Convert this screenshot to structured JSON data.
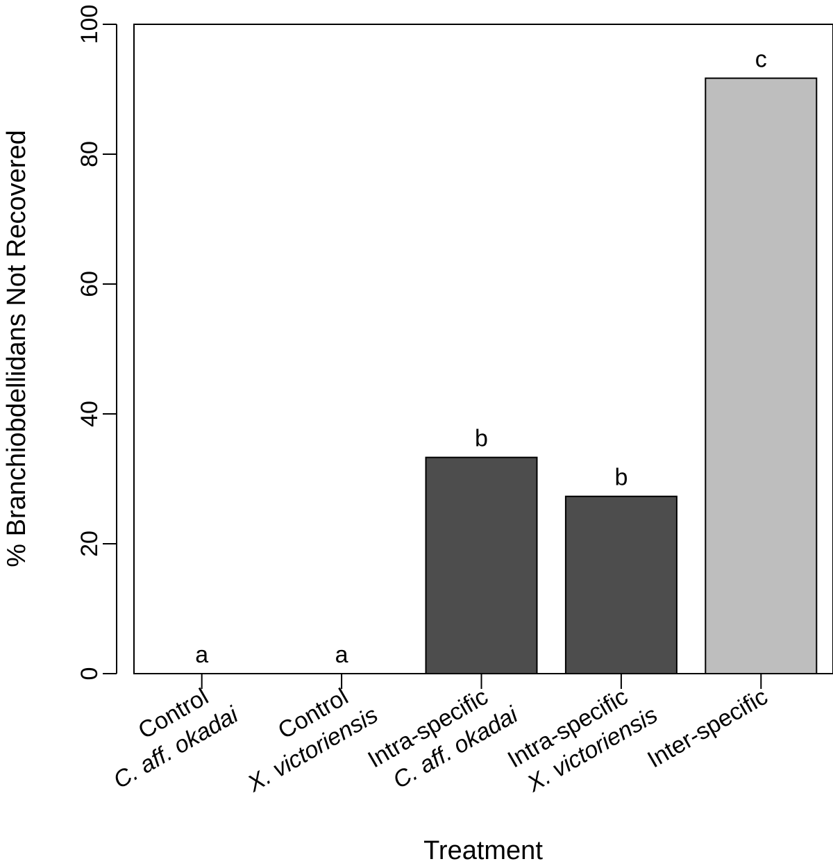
{
  "chart_data": {
    "type": "bar",
    "title": "",
    "xlabel": "Treatment",
    "ylabel": "% Branchiobdellidans Not Recovered",
    "ylim": [
      0,
      100
    ],
    "yticks": [
      "0",
      "20",
      "40",
      "60",
      "80",
      "100"
    ],
    "categories": [
      {
        "line1": "Control",
        "line2": "C. aff. okadai",
        "line2_italic": true
      },
      {
        "line1": "Control",
        "line2": "X. victoriensis",
        "line2_italic": true
      },
      {
        "line1": "Intra-specific",
        "line2": "C. aff. okadai",
        "line2_italic": true
      },
      {
        "line1": "Intra-specific",
        "line2": "X. victoriensis",
        "line2_italic": true
      },
      {
        "line1": "Inter-specific",
        "line2": "",
        "line2_italic": false
      }
    ],
    "values": [
      0,
      0,
      33.3,
      27.3,
      91.7
    ],
    "significance_letters": [
      "a",
      "a",
      "b",
      "b",
      "c"
    ],
    "colors": [
      "#ffffff",
      "#ffffff",
      "#4d4d4d",
      "#4d4d4d",
      "#bebebe"
    ],
    "grid": false,
    "legend": "none"
  }
}
